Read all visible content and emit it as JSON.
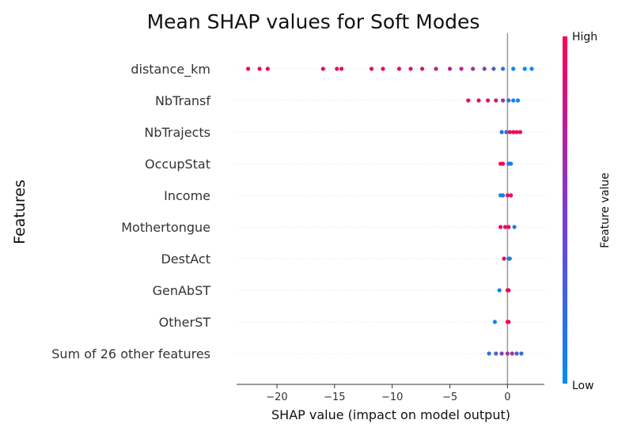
{
  "chart_data": {
    "type": "scatter",
    "subtype": "shap-beeswarm",
    "title": "Mean SHAP values for Soft Modes",
    "xlabel": "SHAP value (impact on model output)",
    "ylabel": "Features",
    "xlim": [
      -23.5,
      3.2
    ],
    "xticks": [
      -20,
      -15,
      -10,
      -5,
      0
    ],
    "xtick_labels": [
      "−20",
      "−15",
      "−10",
      "−5",
      "0"
    ],
    "grid": "dotted horizontal guides per feature",
    "zero_line": true,
    "features": [
      "distance_km",
      "NbTransf",
      "NbTrajects",
      "OccupStat",
      "Income",
      "Mothertongue",
      "DestAct",
      "GenAbST",
      "OtherST",
      "Sum of 26 other features"
    ],
    "colorbar": {
      "label": "Feature value",
      "high_label": "High",
      "low_label": "Low",
      "low_color": "#008bfb",
      "high_color": "#ff0052"
    },
    "series": [
      {
        "feature": "distance_km",
        "points": [
          [
            -22.5,
            0.95
          ],
          [
            -21.5,
            0.95
          ],
          [
            -20.8,
            0.95
          ],
          [
            -16.0,
            0.9
          ],
          [
            -14.8,
            0.9
          ],
          [
            -14.4,
            0.9
          ],
          [
            -11.8,
            0.9
          ],
          [
            -10.8,
            0.88
          ],
          [
            -9.4,
            0.85
          ],
          [
            -8.4,
            0.8
          ],
          [
            -7.4,
            0.8
          ],
          [
            -6.2,
            0.75
          ],
          [
            -5.0,
            0.7
          ],
          [
            -4.0,
            0.7
          ],
          [
            -3.0,
            0.6
          ],
          [
            -2.0,
            0.45
          ],
          [
            -1.2,
            0.3
          ],
          [
            -0.4,
            0.15
          ],
          [
            0.5,
            0.05
          ],
          [
            1.5,
            0.0
          ],
          [
            2.1,
            0.0
          ]
        ]
      },
      {
        "feature": "NbTransf",
        "points": [
          [
            -3.4,
            0.95
          ],
          [
            -2.5,
            0.9
          ],
          [
            -1.7,
            0.85
          ],
          [
            -1.0,
            0.75
          ],
          [
            -0.4,
            0.55
          ],
          [
            0.1,
            0.2
          ],
          [
            0.5,
            0.05
          ],
          [
            0.9,
            0.05
          ]
        ]
      },
      {
        "feature": "NbTrajects",
        "points": [
          [
            -0.5,
            0.2
          ],
          [
            -0.1,
            0.2
          ],
          [
            0.2,
            0.9
          ],
          [
            0.5,
            0.95
          ],
          [
            0.8,
            0.95
          ],
          [
            1.1,
            0.95
          ]
        ]
      },
      {
        "feature": "OccupStat",
        "points": [
          [
            -0.6,
            0.95
          ],
          [
            -0.4,
            0.95
          ],
          [
            0.1,
            0.1
          ],
          [
            0.3,
            0.1
          ]
        ]
      },
      {
        "feature": "Income",
        "points": [
          [
            -0.6,
            0.1
          ],
          [
            -0.4,
            0.1
          ],
          [
            0.0,
            0.9
          ],
          [
            0.3,
            0.95
          ]
        ]
      },
      {
        "feature": "Mothertongue",
        "points": [
          [
            -0.6,
            0.9
          ],
          [
            -0.2,
            0.9
          ],
          [
            0.1,
            0.9
          ],
          [
            0.6,
            0.1
          ]
        ]
      },
      {
        "feature": "DestAct",
        "points": [
          [
            -0.3,
            0.9
          ],
          [
            0.1,
            0.1
          ],
          [
            0.2,
            0.1
          ]
        ]
      },
      {
        "feature": "GenAbST",
        "points": [
          [
            -0.7,
            0.1
          ],
          [
            0.0,
            0.95
          ],
          [
            0.1,
            0.95
          ]
        ]
      },
      {
        "feature": "OtherST",
        "points": [
          [
            -1.1,
            0.1
          ],
          [
            0.0,
            0.95
          ],
          [
            0.1,
            0.95
          ]
        ]
      },
      {
        "feature": "Sum of 26 other features",
        "points": [
          [
            -1.6,
            0.15
          ],
          [
            -1.0,
            0.3
          ],
          [
            -0.5,
            0.5
          ],
          [
            0.0,
            0.6
          ],
          [
            0.4,
            0.6
          ],
          [
            0.8,
            0.3
          ],
          [
            1.2,
            0.2
          ]
        ]
      }
    ]
  }
}
